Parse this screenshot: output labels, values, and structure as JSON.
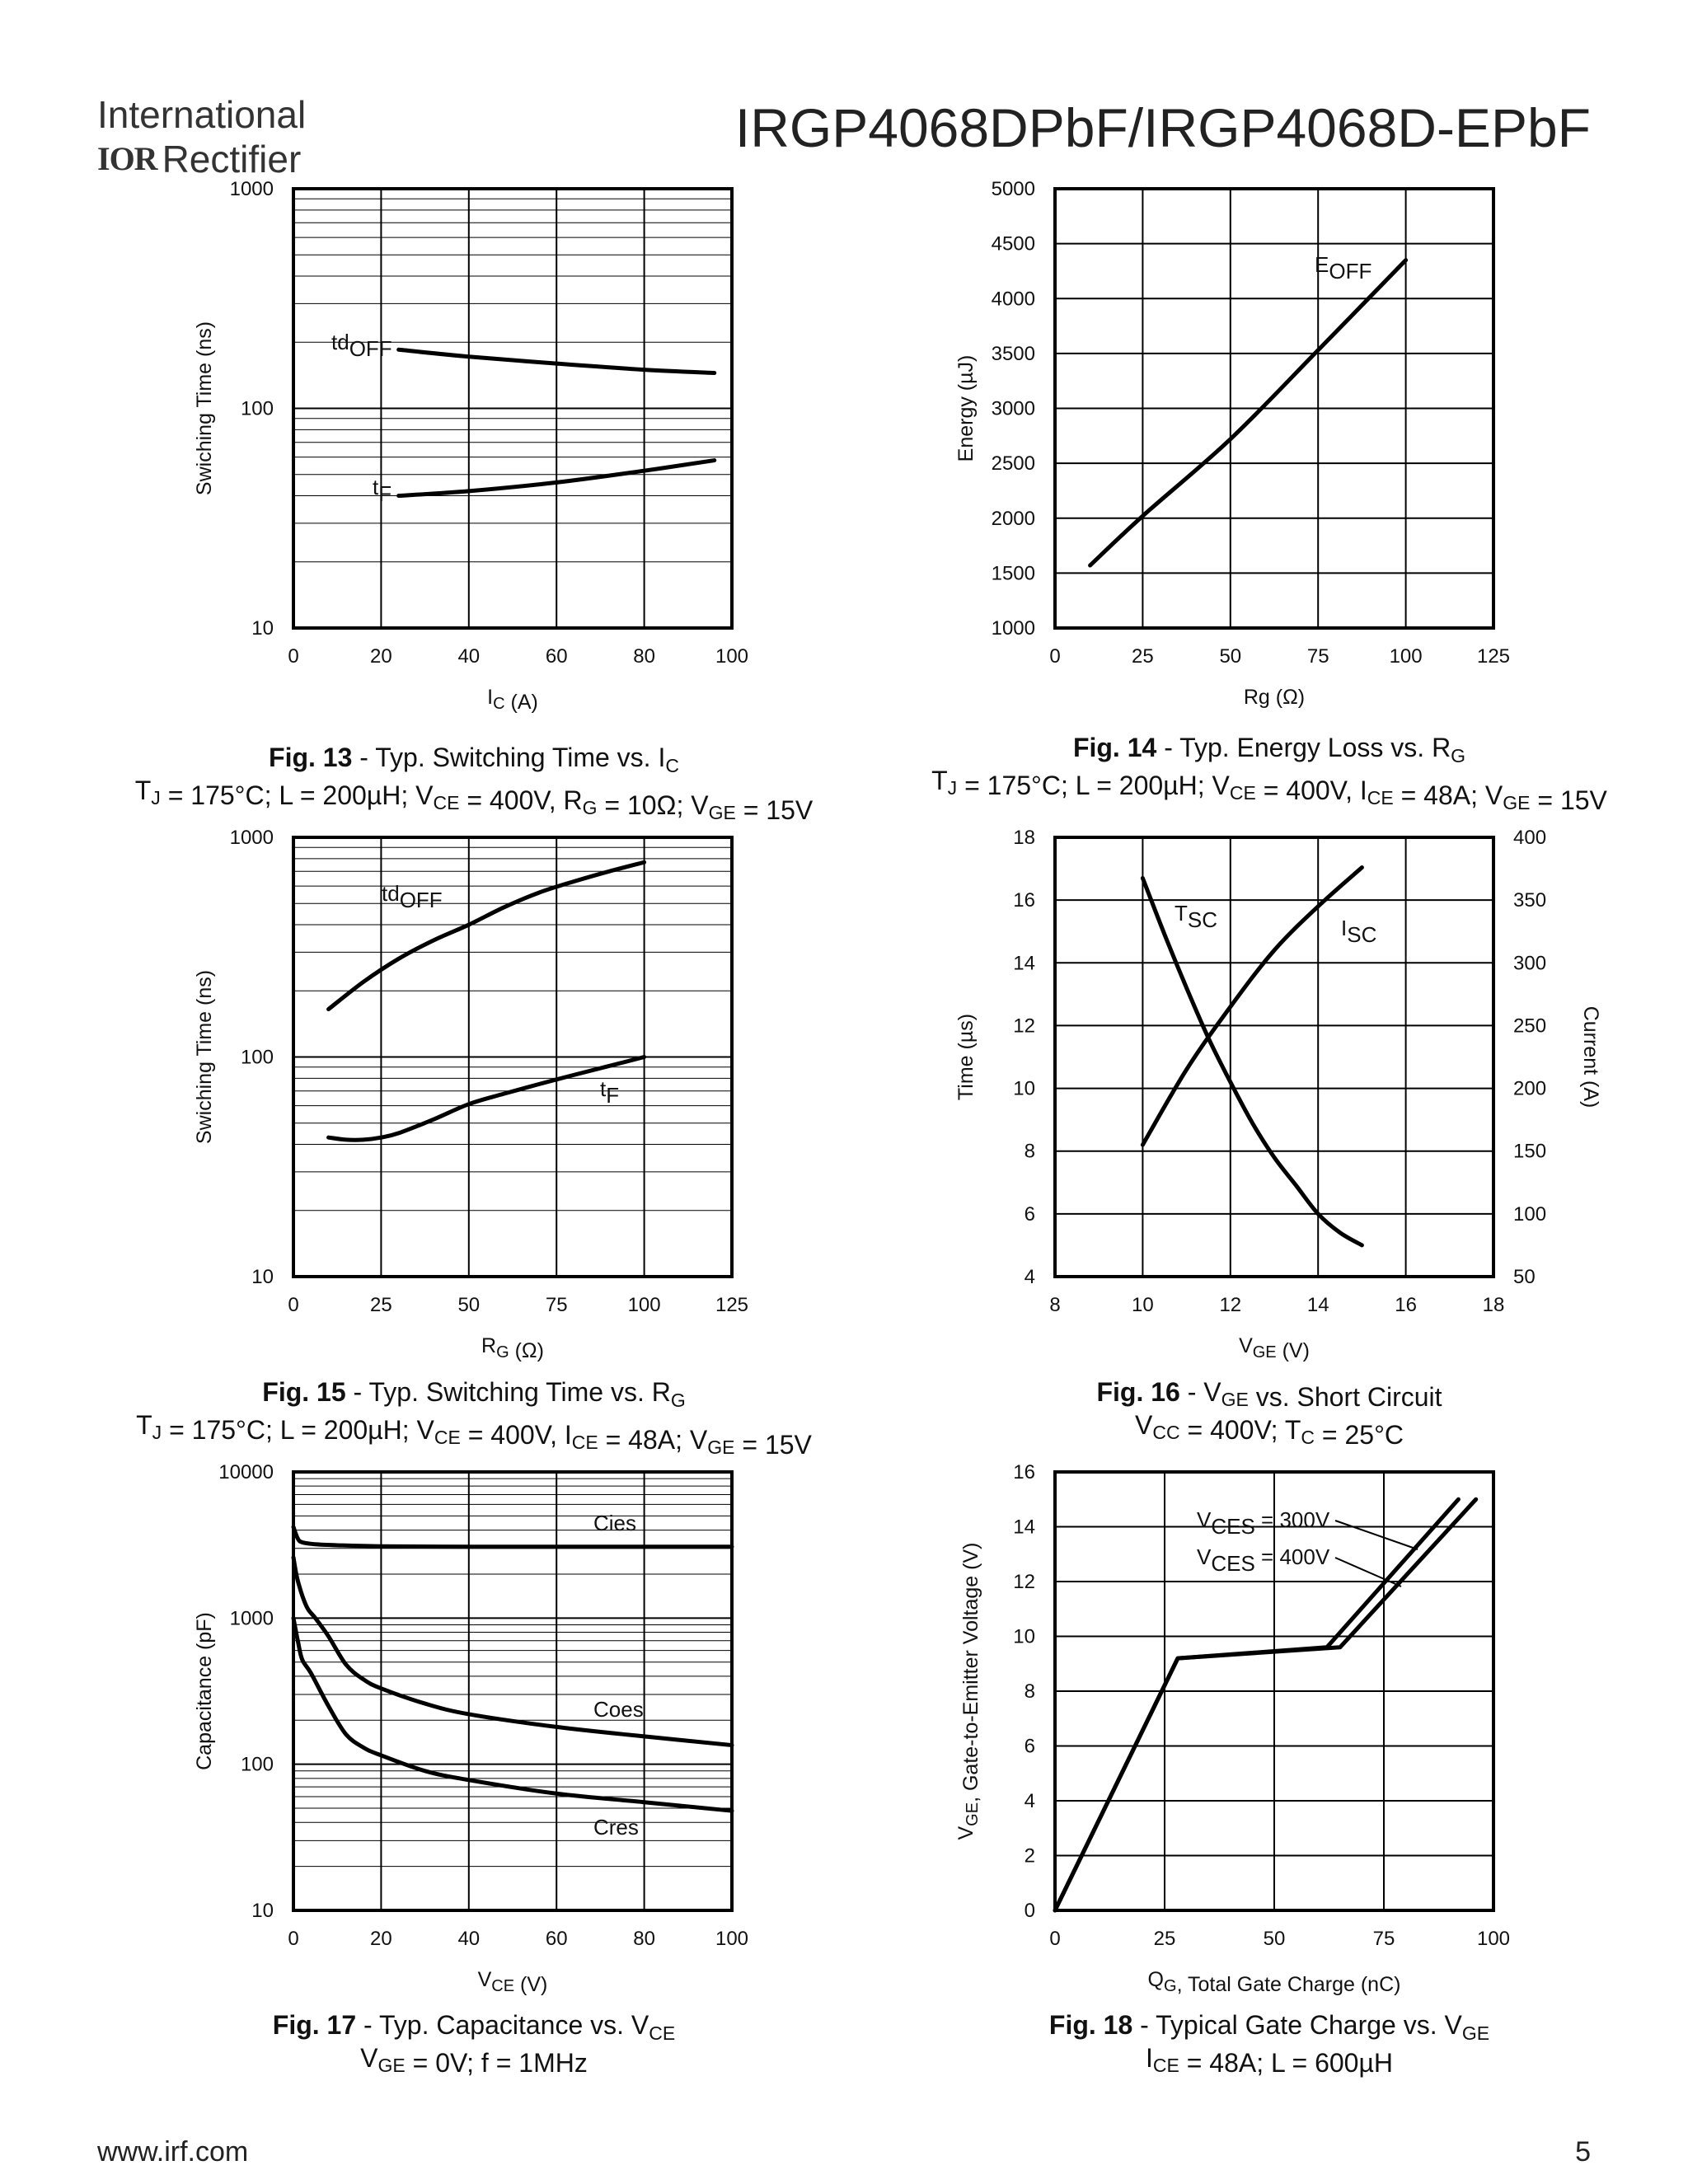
{
  "header": {
    "company_line1": "International",
    "company_logo": "IOR",
    "company_line2": "Rectifier",
    "title": "IRGP4068DPbF/IRGP4068D-EPbF"
  },
  "footer": {
    "url": "www.irf.com",
    "page": "5"
  },
  "colors": {
    "curve": "#000000",
    "grid": "#000000",
    "background": "#ffffff"
  },
  "chart_data": [
    {
      "id": "fig13",
      "type": "line",
      "caption": {
        "fig": "Fig. 13",
        "title": "Typ. Switching Time vs. I",
        "title_sub": "C",
        "conditions": "T_J = 175°C; L = 200µH; V_CE = 400V, R_G = 10Ω; V_GE = 15V"
      },
      "xlabel": "I_C (A)",
      "ylabel": "Swiching Time (ns)",
      "xlim": [
        0,
        100
      ],
      "xticks": [
        0,
        20,
        40,
        60,
        80,
        100
      ],
      "ylim": [
        10,
        1000
      ],
      "ylog": true,
      "yticks": [
        10,
        100,
        1000
      ],
      "series": [
        {
          "name": "tdOFF",
          "x": [
            24,
            40,
            60,
            80,
            96
          ],
          "y": [
            185,
            172,
            160,
            150,
            145
          ]
        },
        {
          "name": "tF",
          "x": [
            24,
            40,
            60,
            80,
            96
          ],
          "y": [
            40,
            42,
            46,
            52,
            58
          ]
        }
      ]
    },
    {
      "id": "fig14",
      "type": "line",
      "caption": {
        "fig": "Fig. 14",
        "title": "Typ. Energy Loss vs. R",
        "title_sub": "G",
        "conditions": "T_J = 175°C; L = 200µH; V_CE = 400V, I_CE = 48A; V_GE = 15V"
      },
      "xlabel": "Rg (Ω)",
      "ylabel": "Energy (µJ)",
      "xlim": [
        0,
        125
      ],
      "xticks": [
        0,
        25,
        50,
        75,
        100,
        125
      ],
      "ylim": [
        1000,
        5000
      ],
      "yticks": [
        1000,
        1500,
        2000,
        2500,
        3000,
        3500,
        4000,
        4500,
        5000
      ],
      "series": [
        {
          "name": "EOFF",
          "x": [
            10,
            25,
            50,
            75,
            100
          ],
          "y": [
            1570,
            2020,
            2720,
            3530,
            4350
          ]
        }
      ]
    },
    {
      "id": "fig15",
      "type": "line",
      "caption": {
        "fig": "Fig. 15",
        "title": "Typ. Switching Time vs. R",
        "title_sub": "G",
        "conditions": "T_J = 175°C; L = 200µH; V_CE = 400V, I_CE = 48A; V_GE = 15V"
      },
      "xlabel": "R_G (Ω)",
      "ylabel": "Swiching Time (ns)",
      "xlim": [
        0,
        125
      ],
      "xticks": [
        0,
        25,
        50,
        75,
        100,
        125
      ],
      "ylim": [
        10,
        1000
      ],
      "ylog": true,
      "yticks": [
        10,
        100,
        1000
      ],
      "series": [
        {
          "name": "tdOFF",
          "x": [
            10,
            20,
            30,
            40,
            50,
            60,
            70,
            80,
            90,
            100
          ],
          "y": [
            165,
            220,
            280,
            340,
            400,
            480,
            560,
            630,
            700,
            770
          ]
        },
        {
          "name": "tF",
          "x": [
            10,
            15,
            20,
            25,
            30,
            40,
            50,
            60,
            75,
            90,
            100
          ],
          "y": [
            43,
            42,
            42,
            43,
            45,
            52,
            61,
            68,
            79,
            91,
            100
          ]
        }
      ]
    },
    {
      "id": "fig16",
      "type": "line",
      "caption": {
        "fig": "Fig. 16",
        "title": "V_GE vs. Short Circuit",
        "conditions": "V_CC = 400V; T_C = 25°C"
      },
      "xlabel": "V_GE (V)",
      "ylabel": "Time (µs)",
      "ylabel2": "Current (A)",
      "xlim": [
        8,
        18
      ],
      "xticks": [
        8,
        10,
        12,
        14,
        16,
        18
      ],
      "ylim": [
        4,
        18
      ],
      "yticks": [
        4,
        6,
        8,
        10,
        12,
        14,
        16,
        18
      ],
      "y2lim": [
        50,
        400
      ],
      "y2ticks": [
        50,
        100,
        150,
        200,
        250,
        300,
        350,
        400
      ],
      "series": [
        {
          "name": "Tsc",
          "axis": "left",
          "x": [
            10,
            10.5,
            11,
            11.5,
            12,
            12.5,
            13,
            13.5,
            14,
            14.5,
            15
          ],
          "y": [
            16.7,
            14.9,
            13.2,
            11.6,
            10.2,
            8.9,
            7.8,
            6.9,
            6.0,
            5.4,
            5.0
          ]
        },
        {
          "name": "Isc",
          "axis": "right",
          "x": [
            10,
            11,
            12,
            13,
            14,
            15
          ],
          "y": [
            155,
            215,
            265,
            310,
            345,
            376
          ]
        }
      ]
    },
    {
      "id": "fig17",
      "type": "line",
      "caption": {
        "fig": "Fig. 17",
        "title": "Typ. Capacitance vs. V",
        "title_sub": "CE",
        "conditions": "V_GE = 0V; f = 1MHz"
      },
      "xlabel": "V_CE (V)",
      "ylabel": "Capacitance (pF)",
      "xlim": [
        0,
        100
      ],
      "xticks": [
        0,
        20,
        40,
        60,
        80,
        100
      ],
      "ylim": [
        10,
        10000
      ],
      "ylog": true,
      "yticks": [
        10,
        100,
        1000,
        10000
      ],
      "series": [
        {
          "name": "Cies",
          "x": [
            0,
            1,
            2,
            5,
            10,
            20,
            40,
            60,
            80,
            100
          ],
          "y": [
            4200,
            3500,
            3300,
            3200,
            3150,
            3100,
            3080,
            3080,
            3080,
            3080
          ]
        },
        {
          "name": "Coes",
          "x": [
            0,
            1,
            3,
            5,
            8,
            12,
            16,
            20,
            30,
            40,
            60,
            80,
            100
          ],
          "y": [
            2600,
            1800,
            1200,
            1000,
            750,
            480,
            380,
            330,
            260,
            220,
            180,
            155,
            135
          ]
        },
        {
          "name": "Cres",
          "x": [
            0,
            1,
            2,
            4,
            8,
            12,
            16,
            20,
            30,
            40,
            60,
            80,
            100
          ],
          "y": [
            1000,
            700,
            520,
            420,
            250,
            160,
            130,
            115,
            90,
            78,
            63,
            55,
            48
          ]
        }
      ]
    },
    {
      "id": "fig18",
      "type": "line",
      "caption": {
        "fig": "Fig. 18",
        "title": "Typical Gate Charge vs. V",
        "title_sub": "GE",
        "conditions": "I_CE = 48A; L = 600µH"
      },
      "xlabel": "Q_G, Total Gate Charge (nC)",
      "ylabel": "V_GE, Gate-to-Emitter Voltage (V)",
      "xlim": [
        0,
        100
      ],
      "xticks": [
        0,
        25,
        50,
        75,
        100
      ],
      "ylim": [
        0,
        16
      ],
      "yticks": [
        0,
        2,
        4,
        6,
        8,
        10,
        12,
        14,
        16
      ],
      "series": [
        {
          "name": "VCES = 300V",
          "x": [
            0,
            28,
            62,
            92
          ],
          "y": [
            0,
            9.2,
            9.6,
            15.0
          ]
        },
        {
          "name": "VCES = 400V",
          "x": [
            0,
            28,
            65,
            96
          ],
          "y": [
            0,
            9.2,
            9.6,
            15.0
          ]
        }
      ]
    }
  ]
}
